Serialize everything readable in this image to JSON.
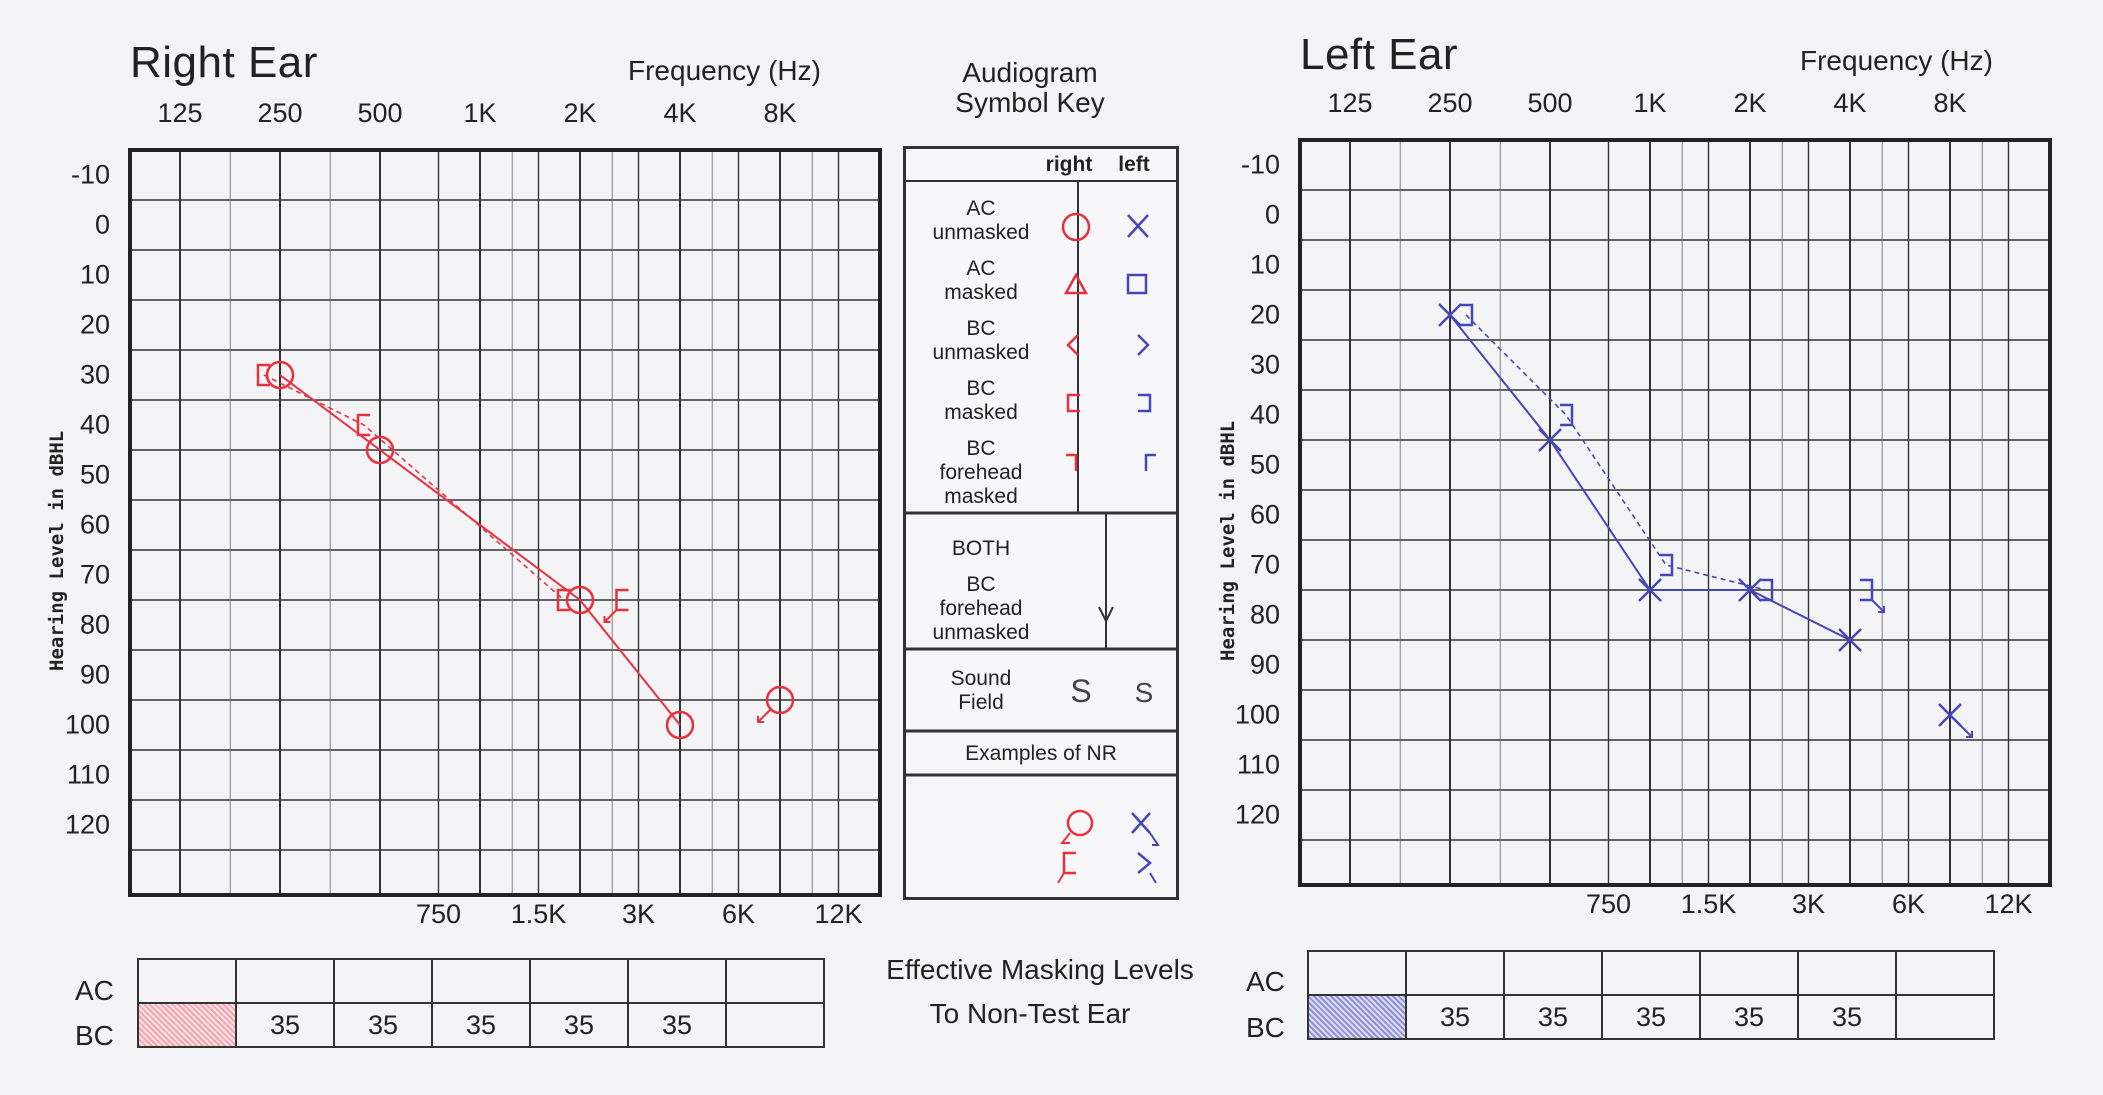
{
  "right_ear": {
    "title": "Right Ear",
    "freq_title": "Frequency (Hz)",
    "top_ticks": [
      "125",
      "250",
      "500",
      "1K",
      "2K",
      "4K",
      "8K"
    ],
    "bottom_ticks": [
      "750",
      "1.5K",
      "3K",
      "6K",
      "12K"
    ],
    "db_ticks": [
      "-10",
      "0",
      "10",
      "20",
      "30",
      "40",
      "50",
      "60",
      "70",
      "80",
      "90",
      "100",
      "110",
      "120"
    ],
    "ylabel": "Hearing Level in dBHL"
  },
  "left_ear": {
    "title": "Left Ear",
    "freq_title": "Frequency (Hz)",
    "top_ticks": [
      "125",
      "250",
      "500",
      "1K",
      "2K",
      "4K",
      "8K"
    ],
    "bottom_ticks": [
      "750",
      "1.5K",
      "3K",
      "6K",
      "12K"
    ],
    "db_ticks": [
      "-10",
      "0",
      "10",
      "20",
      "30",
      "40",
      "50",
      "60",
      "70",
      "80",
      "90",
      "100",
      "110",
      "120"
    ],
    "ylabel": "Hearing Level in dBHL"
  },
  "key": {
    "title_line1": "Audiogram",
    "title_line2": "Symbol Key",
    "col_right": "right",
    "col_left": "left",
    "rows": [
      {
        "label1": "AC",
        "label2": "unmasked"
      },
      {
        "label1": "AC",
        "label2": "masked"
      },
      {
        "label1": "BC",
        "label2": "unmasked"
      },
      {
        "label1": "BC",
        "label2": "masked"
      },
      {
        "label1": "BC",
        "label2": "forehead",
        "label3": "masked"
      }
    ],
    "both_label": "BOTH",
    "both_bc_1": "BC",
    "both_bc_2": "forehead",
    "both_bc_3": "unmasked",
    "sound_field_1": "Sound",
    "sound_field_2": "Field",
    "sound_field_symbol": "S",
    "nr_label": "Examples of NR"
  },
  "masking": {
    "title_line1": "Effective Masking Levels",
    "title_line2": "To Non-Test Ear",
    "ac_label": "AC",
    "bc_label": "BC",
    "right_bc": [
      "",
      "35",
      "35",
      "35",
      "35",
      "35",
      ""
    ],
    "left_bc": [
      "",
      "35",
      "35",
      "35",
      "35",
      "35",
      ""
    ]
  },
  "colors": {
    "right": "#e8313f",
    "left": "#4646b8",
    "grid": "#333333"
  },
  "chart_data": [
    {
      "type": "line",
      "title": "Right Ear",
      "xlabel": "Frequency (Hz)",
      "ylabel": "Hearing Level in dBHL",
      "x_scale": "log",
      "y_inverted": true,
      "ylim": [
        -10,
        120
      ],
      "series": [
        {
          "symbol": "AC unmasked",
          "x": [
            250,
            500,
            2000,
            4000,
            8000
          ],
          "y": [
            30,
            45,
            75,
            100,
            95
          ],
          "no_response": [
            false,
            false,
            false,
            false,
            true
          ]
        },
        {
          "symbol": "BC masked",
          "x": [
            250,
            500,
            2000,
            3000
          ],
          "y": [
            30,
            40,
            75,
            75
          ],
          "no_response": [
            false,
            false,
            false,
            true
          ]
        }
      ]
    },
    {
      "type": "line",
      "title": "Left Ear",
      "xlabel": "Frequency (Hz)",
      "ylabel": "Hearing Level in dBHL",
      "x_scale": "log",
      "y_inverted": true,
      "ylim": [
        -10,
        120
      ],
      "series": [
        {
          "symbol": "AC unmasked",
          "x": [
            250,
            500,
            1000,
            2000,
            4000,
            8000
          ],
          "y": [
            20,
            45,
            75,
            75,
            85,
            100
          ],
          "no_response": [
            false,
            false,
            false,
            false,
            false,
            true
          ]
        },
        {
          "symbol": "BC masked",
          "x": [
            250,
            500,
            1000,
            2000,
            4000
          ],
          "y": [
            20,
            40,
            70,
            75,
            75
          ],
          "no_response": [
            false,
            false,
            false,
            false,
            true
          ]
        }
      ]
    }
  ]
}
